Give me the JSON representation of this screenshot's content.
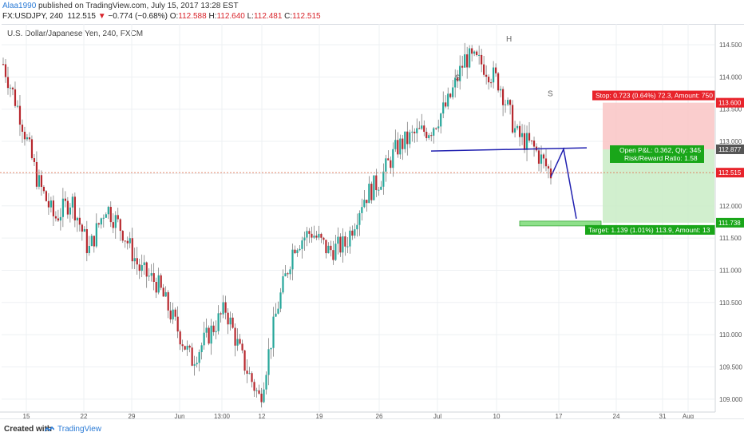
{
  "header": {
    "user": "Alaa1990",
    "published": "published on TradingView.com, July 15, 2017 13:28 EST",
    "symbol": "FX:USDJPY, 240",
    "last": "112.515",
    "arrow": "▼",
    "change": "−0.774 (−0.68%)",
    "o_label": "O:",
    "o_val": "112.588",
    "h_label": "H:",
    "h_val": "112.640",
    "l_label": "L:",
    "l_val": "112.481",
    "c_label": "C:",
    "c_val": "112.515"
  },
  "instrument": "U.S. Dollar/Japanese Yen, 240, FXCM",
  "footer": {
    "created": "Created with",
    "brand": "TradingView"
  },
  "colors": {
    "up": "#26a69a",
    "down": "#b7282e",
    "trendline": "#2020b0",
    "stop_zone": "#f9c4c4",
    "target_zone": "#c9ecc6",
    "stop_tag": "#e8232b",
    "target_tag": "#19a619"
  },
  "chart_data": {
    "type": "candlestick",
    "ylim": [
      108.5,
      114.7
    ],
    "y_ticks": [
      "114.500",
      "114.000",
      "113.500",
      "113.000",
      "112.500",
      "112.000",
      "111.500",
      "111.000",
      "110.500",
      "110.000",
      "109.500",
      "109.000",
      "108.500"
    ],
    "x_ticks": [
      "15",
      "22",
      "29",
      "Jun",
      "13:00",
      "12",
      "19",
      "26",
      "Jul",
      "10",
      "17",
      "24",
      "31",
      "Aug"
    ],
    "price_tags": {
      "stop": "113.600",
      "current_a": "112.877",
      "current_b": "112.515",
      "target": "111.738"
    },
    "pattern_labels": {
      "left_shoulder": "S",
      "head": "H",
      "right_shoulder": "S"
    },
    "position": {
      "stop_text": "Stop: 0.723 (0.64%) 72.3, Amount: 750",
      "open_pl_text": "Open P&L: 0.362, Qty: 345",
      "rr_text": "Risk/Reward Ratio: 1.58",
      "target_text": "Target: 1.139 (1.01%) 113.9, Amount: 13"
    },
    "neckline": 112.877,
    "last_close": 112.515,
    "path_points": [
      {
        "x": "15",
        "y": 114.2
      },
      {
        "x": "17",
        "y": 113.4
      },
      {
        "x": "19",
        "y": 112.4
      },
      {
        "x": "22",
        "y": 111.8
      },
      {
        "x": "24",
        "y": 112.1
      },
      {
        "x": "26",
        "y": 111.3
      },
      {
        "x": "29",
        "y": 112.0
      },
      {
        "x": "31",
        "y": 111.6
      },
      {
        "x": "Jun",
        "y": 111.0
      },
      {
        "x": "2",
        "y": 110.8
      },
      {
        "x": "5",
        "y": 110.2
      },
      {
        "x": "7",
        "y": 109.6
      },
      {
        "x": "9",
        "y": 110.0
      },
      {
        "x": "12",
        "y": 110.4
      },
      {
        "x": "14",
        "y": 109.6
      },
      {
        "x": "15",
        "y": 109.0
      },
      {
        "x": "16",
        "y": 110.4
      },
      {
        "x": "19",
        "y": 111.4
      },
      {
        "x": "21",
        "y": 111.6
      },
      {
        "x": "23",
        "y": 111.3
      },
      {
        "x": "26",
        "y": 111.4
      },
      {
        "x": "28",
        "y": 112.1
      },
      {
        "x": "30",
        "y": 112.4
      },
      {
        "x": "Jul",
        "y": 112.9
      },
      {
        "x": "3",
        "y": 113.1
      },
      {
        "x": "5",
        "y": 113.2
      },
      {
        "x": "7",
        "y": 113.6
      },
      {
        "x": "10",
        "y": 114.3
      },
      {
        "x": "11",
        "y": 114.2
      },
      {
        "x": "12",
        "y": 113.9
      },
      {
        "x": "13",
        "y": 113.1
      },
      {
        "x": "14",
        "y": 112.9
      },
      {
        "x": "15",
        "y": 112.5
      }
    ]
  }
}
